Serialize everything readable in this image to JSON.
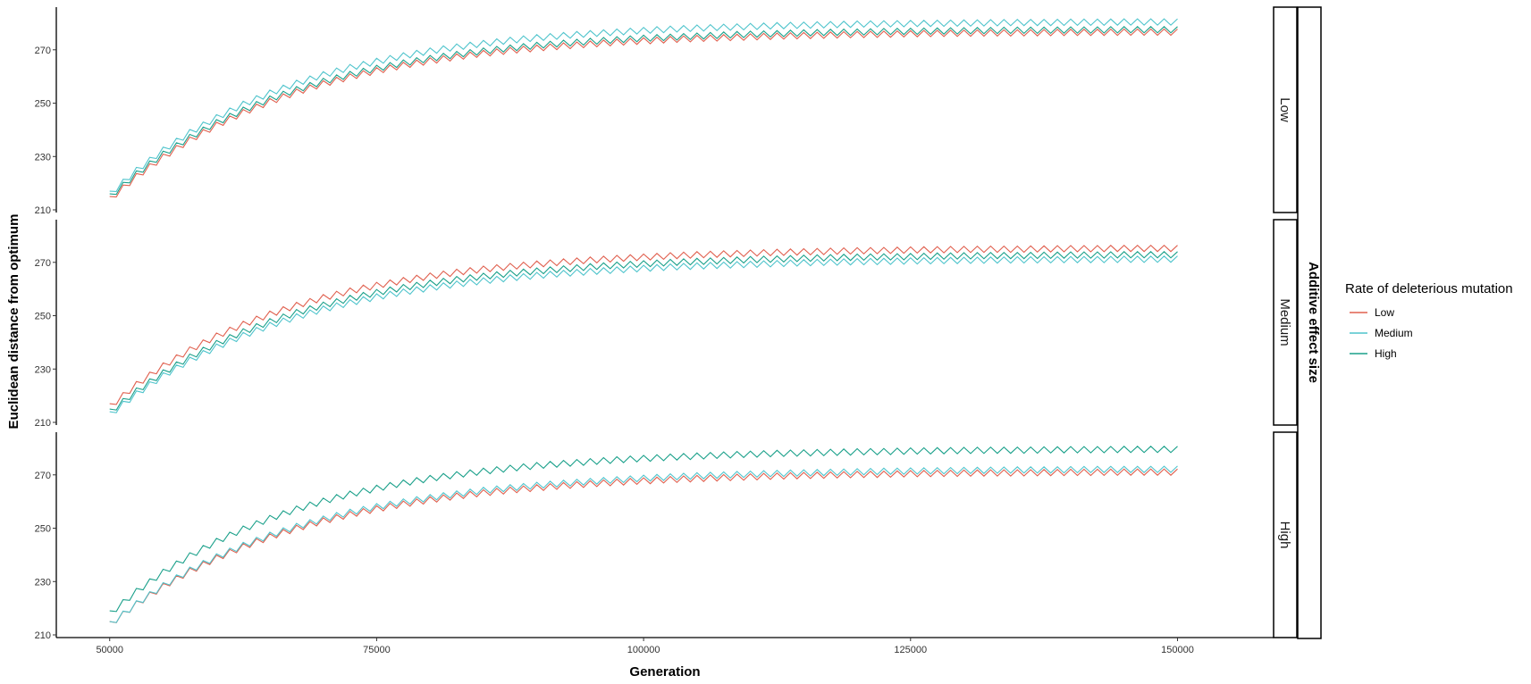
{
  "chart_data": {
    "type": "line",
    "xlabel": "Generation",
    "ylabel": "Euclidean distance from optimum",
    "xlim": [
      45000,
      159000
    ],
    "ylim": [
      209,
      286
    ],
    "x_ticks": [
      50000,
      75000,
      100000,
      125000,
      150000
    ],
    "x_tick_labels": [
      "50000",
      "75000",
      "100000",
      "125000",
      "150000"
    ],
    "y_ticks": [
      210,
      230,
      250,
      270
    ],
    "y_tick_labels": [
      "210",
      "230",
      "250",
      "270"
    ],
    "grid": false,
    "facet_title": "Additive effect size",
    "legend": {
      "title": "Rate of deleterious mutation",
      "placement": "right",
      "entries": [
        "Low",
        "Medium",
        "High"
      ]
    },
    "series_colors": {
      "Low": "#E0604F",
      "Medium": "#4FC4CC",
      "High": "#1AA08A"
    },
    "x": [
      50000,
      52500,
      55000,
      57500,
      60000,
      62500,
      65000,
      67500,
      70000,
      72500,
      75000,
      77500,
      80000,
      82500,
      85000,
      87500,
      90000,
      92500,
      95000,
      97500,
      100000,
      102500,
      105000,
      107500,
      110000,
      112500,
      115000,
      117500,
      120000,
      122500,
      125000,
      127500,
      130000,
      132500,
      135000,
      137500,
      140000,
      142500,
      145000,
      147500,
      150000
    ],
    "panels": [
      {
        "label": "Low",
        "series": [
          {
            "name": "Low",
            "values": [
              214.0,
              222.6,
              229.9,
              236.3,
              241.8,
              246.6,
              250.7,
              254.3,
              257.4,
              260.0,
              262.3,
              264.3,
              266.0,
              267.5,
              268.8,
              269.9,
              270.8,
              271.6,
              272.3,
              273.0,
              273.5,
              274.0,
              274.4,
              274.7,
              275.0,
              275.3,
              275.5,
              275.7,
              275.9,
              276.0,
              276.2,
              276.3,
              276.4,
              276.5,
              276.5,
              276.6,
              276.7,
              276.7,
              276.8,
              276.8,
              276.8
            ]
          },
          {
            "name": "Medium",
            "values": [
              216.0,
              224.9,
              232.5,
              239.1,
              244.7,
              249.7,
              253.9,
              257.6,
              260.8,
              263.5,
              265.8,
              267.9,
              269.7,
              271.2,
              272.5,
              273.7,
              274.7,
              275.5,
              276.2,
              276.8,
              277.4,
              277.9,
              278.3,
              278.6,
              278.9,
              279.2,
              279.4,
              279.6,
              279.8,
              279.9,
              280.0,
              280.1,
              280.2,
              280.3,
              280.4,
              280.4,
              280.5,
              280.5,
              280.6,
              280.6,
              280.6
            ]
          },
          {
            "name": "High",
            "values": [
              215.0,
              223.6,
              231.0,
              237.3,
              242.8,
              247.5,
              251.7,
              255.2,
              258.3,
              260.9,
              263.2,
              265.2,
              266.9,
              268.4,
              269.7,
              270.8,
              271.8,
              272.6,
              273.3,
              273.9,
              274.5,
              274.9,
              275.3,
              275.7,
              276.0,
              276.2,
              276.5,
              276.7,
              276.8,
              277.0,
              277.1,
              277.2,
              277.3,
              277.4,
              277.5,
              277.5,
              277.6,
              277.6,
              277.7,
              277.7,
              277.7
            ]
          }
        ]
      },
      {
        "label": "Medium",
        "series": [
          {
            "name": "Low",
            "values": [
              216.0,
              224.3,
              231.3,
              237.3,
              242.5,
              246.9,
              250.7,
              254.0,
              256.9,
              259.4,
              261.5,
              263.3,
              265.0,
              266.4,
              267.6,
              268.6,
              269.5,
              270.3,
              271.0,
              271.6,
              272.1,
              272.6,
              273.0,
              273.3,
              273.6,
              273.9,
              274.1,
              274.3,
              274.5,
              274.6,
              274.8,
              274.9,
              275.0,
              275.1,
              275.1,
              275.2,
              275.3,
              275.3,
              275.4,
              275.4,
              275.4
            ]
          },
          {
            "name": "Medium",
            "values": [
              213.0,
              220.8,
              227.6,
              233.4,
              238.4,
              242.7,
              246.5,
              249.7,
              252.6,
              255.0,
              257.2,
              259.0,
              260.6,
              262.0,
              263.2,
              264.3,
              265.2,
              266.0,
              266.7,
              267.3,
              267.9,
              268.4,
              268.8,
              269.1,
              269.4,
              269.7,
              270.0,
              270.2,
              270.4,
              270.5,
              270.7,
              270.8,
              270.9,
              271.0,
              271.1,
              271.1,
              271.2,
              271.2,
              271.3,
              271.3,
              271.4
            ]
          },
          {
            "name": "High",
            "values": [
              214.0,
              221.9,
              228.7,
              234.6,
              239.7,
              244.1,
              247.9,
              251.3,
              254.1,
              256.6,
              258.8,
              260.7,
              262.3,
              263.7,
              264.9,
              266.0,
              266.9,
              267.7,
              268.5,
              269.1,
              269.6,
              270.1,
              270.5,
              270.8,
              271.2,
              271.4,
              271.7,
              271.9,
              272.1,
              272.2,
              272.3,
              272.5,
              272.6,
              272.7,
              272.7,
              272.8,
              272.9,
              272.9,
              273.0,
              273.0,
              273.0
            ]
          }
        ]
      },
      {
        "label": "High",
        "series": [
          {
            "name": "Low",
            "values": [
              214.0,
              221.7,
              228.3,
              234.0,
              238.9,
              243.2,
              246.9,
              250.1,
              252.9,
              255.3,
              257.4,
              259.2,
              260.8,
              262.2,
              263.4,
              264.4,
              265.3,
              266.1,
              266.8,
              267.4,
              267.9,
              268.4,
              268.8,
              269.1,
              269.4,
              269.7,
              269.9,
              270.1,
              270.3,
              270.4,
              270.6,
              270.7,
              270.8,
              270.9,
              270.9,
              271.0,
              271.1,
              271.1,
              271.2,
              271.2,
              271.2
            ]
          },
          {
            "name": "Medium",
            "values": [
              214.0,
              221.8,
              228.6,
              234.4,
              239.4,
              243.7,
              247.5,
              250.8,
              253.6,
              256.1,
              258.2,
              260.0,
              261.6,
              263.0,
              264.3,
              265.3,
              266.2,
              267.0,
              267.7,
              268.3,
              268.9,
              269.4,
              269.8,
              270.1,
              270.4,
              270.7,
              270.9,
              271.1,
              271.3,
              271.5,
              271.6,
              271.7,
              271.8,
              271.9,
              272.0,
              272.0,
              272.1,
              272.2,
              272.2,
              272.2,
              272.3
            ]
          },
          {
            "name": "High",
            "values": [
              218.0,
              226.4,
              233.6,
              239.8,
              245.2,
              249.8,
              253.8,
              257.3,
              260.3,
              262.9,
              265.1,
              267.1,
              268.8,
              270.2,
              271.5,
              272.6,
              273.6,
              274.4,
              275.1,
              275.8,
              276.3,
              276.8,
              277.2,
              277.6,
              277.9,
              278.2,
              278.4,
              278.6,
              278.8,
              278.9,
              279.1,
              279.2,
              279.3,
              279.4,
              279.4,
              279.5,
              279.6,
              279.6,
              279.7,
              279.7,
              279.7
            ]
          }
        ]
      }
    ]
  }
}
